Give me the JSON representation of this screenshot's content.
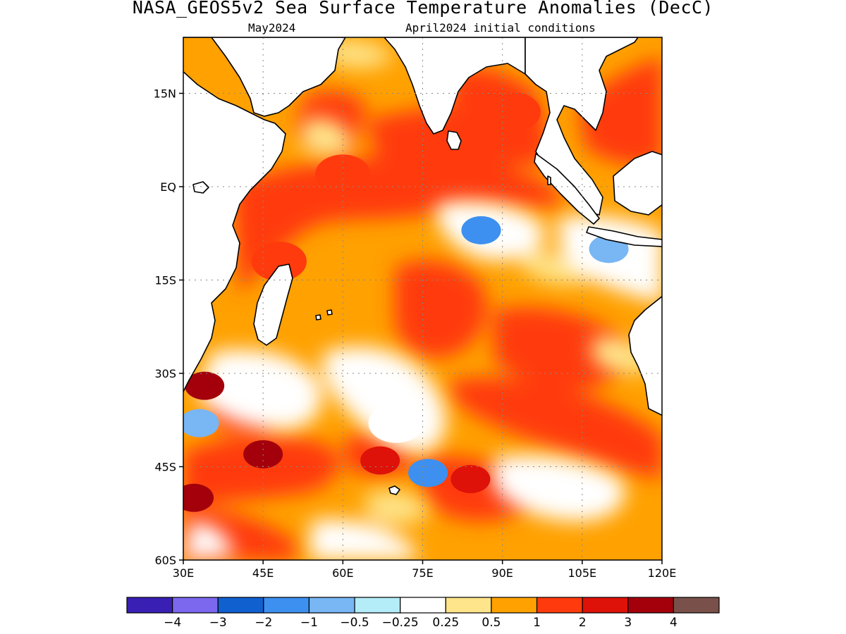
{
  "title": "NASA_GEOS5v2 Sea Surface Temperature Anomalies (DecC)",
  "forecast_month": "May2024",
  "init_conditions": "April2024 initial conditions",
  "map": {
    "lon_range": [
      30,
      120
    ],
    "lat_range": [
      -60,
      24
    ],
    "lat_ticks": [
      {
        "value": 15,
        "label": "15N"
      },
      {
        "value": 0,
        "label": "EQ"
      },
      {
        "value": -15,
        "label": "15S"
      },
      {
        "value": -30,
        "label": "30S"
      },
      {
        "value": -45,
        "label": "45S"
      },
      {
        "value": -60,
        "label": "60S"
      }
    ],
    "lon_ticks": [
      {
        "value": 30,
        "label": "30E"
      },
      {
        "value": 45,
        "label": "45E"
      },
      {
        "value": 60,
        "label": "60E"
      },
      {
        "value": 75,
        "label": "75E"
      },
      {
        "value": 90,
        "label": "90E"
      },
      {
        "value": 105,
        "label": "105E"
      },
      {
        "value": 120,
        "label": "120E"
      }
    ],
    "grid": "dotted",
    "land_color": "#ffffff",
    "coastline_color": "#000000"
  },
  "colorbar": {
    "colors": [
      "#3a1fb5",
      "#7b68ee",
      "#1060d0",
      "#3d90f0",
      "#78b6f4",
      "#b4ecf7",
      "#ffffff",
      "#fee48a",
      "#ffa100",
      "#ff3b0d",
      "#de1208",
      "#a3000b",
      "#79504a"
    ],
    "boundaries": [
      "−4",
      "−3",
      "−2",
      "−1",
      "−0.5",
      "−0.25",
      "0.25",
      "0.5",
      "1",
      "2",
      "3",
      "4"
    ]
  },
  "anomaly_features": [
    {
      "lon": 60,
      "lat": 2,
      "level": 9
    },
    {
      "lon": 80,
      "lat": 6,
      "level": 9
    },
    {
      "lon": 92,
      "lat": 12,
      "level": 9
    },
    {
      "lon": 48,
      "lat": -12,
      "level": 9
    },
    {
      "lon": 86,
      "lat": -7,
      "level": 4
    },
    {
      "lon": 86,
      "lat": -7,
      "level": 3
    },
    {
      "lon": 34,
      "lat": -32,
      "level": 11
    },
    {
      "lon": 45,
      "lat": -43,
      "level": 11
    },
    {
      "lon": 32,
      "lat": -50,
      "level": 11
    },
    {
      "lon": 84,
      "lat": -47,
      "level": 10
    },
    {
      "lon": 67,
      "lat": -44,
      "level": 10
    },
    {
      "lon": 33,
      "lat": -38,
      "level": 4
    },
    {
      "lon": 76,
      "lat": -46,
      "level": 3
    },
    {
      "lon": 110,
      "lat": -10,
      "level": 4
    },
    {
      "lon": 70,
      "lat": -38,
      "level": 6
    }
  ]
}
